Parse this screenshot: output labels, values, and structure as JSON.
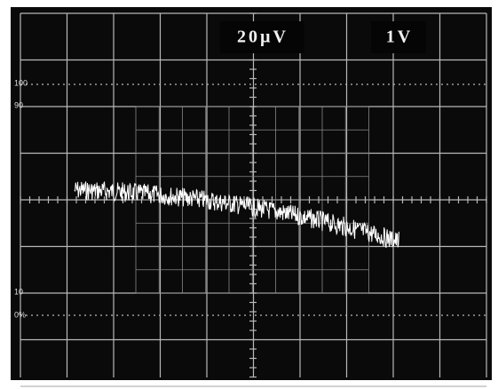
{
  "readout": {
    "volts_per_div": "20µV",
    "timebase": "1V"
  },
  "graticule_labels": {
    "top": "100",
    "upper": "90",
    "lower": "10",
    "bottom": "0%"
  }
}
